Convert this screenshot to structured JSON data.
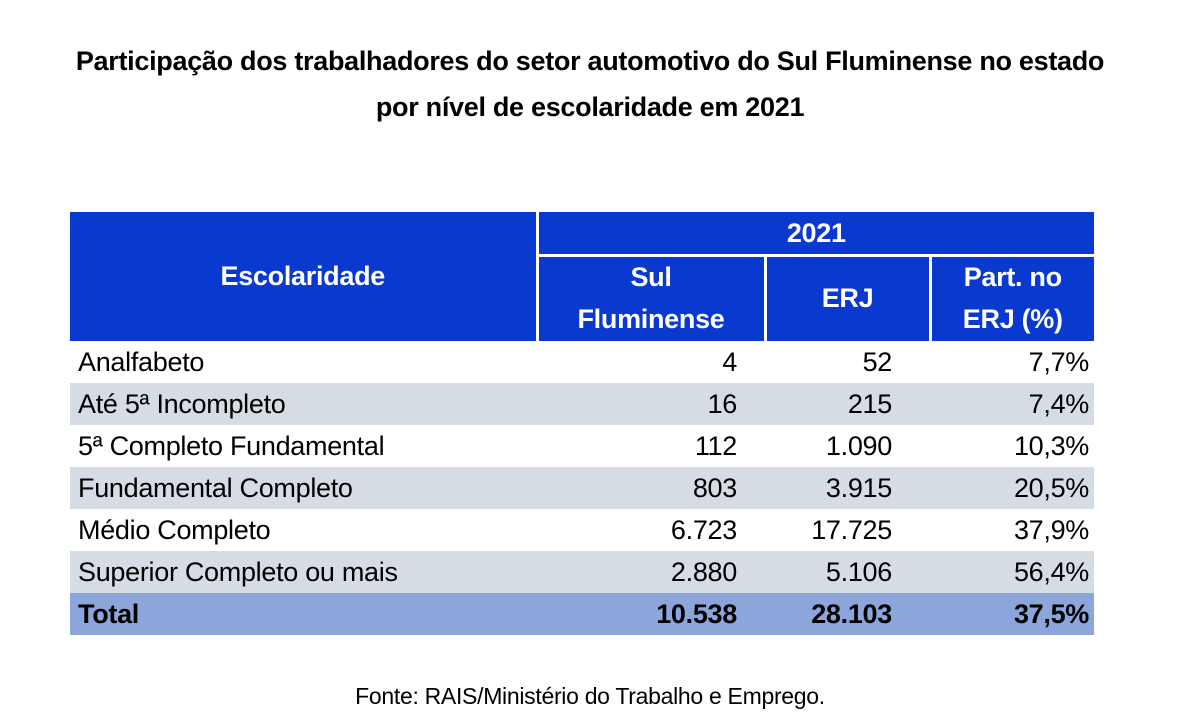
{
  "title": "Participação dos trabalhadores do setor automotivo do Sul Fluminense no estado por nível de escolaridade em 2021",
  "source": "Fonte: RAIS/Ministério do Trabalho e Emprego.",
  "table": {
    "corner_header": "Escolaridade",
    "year_header": "2021",
    "columns": [
      "Sul Fluminense",
      "ERJ",
      "Part. no ERJ (%)"
    ],
    "rows": [
      {
        "label": "Analfabeto",
        "sul_fluminense": "4",
        "erj": "52",
        "part": "7,7%"
      },
      {
        "label": "Até 5ª Incompleto",
        "sul_fluminense": "16",
        "erj": "215",
        "part": "7,4%"
      },
      {
        "label": "5ª Completo Fundamental",
        "sul_fluminense": "112",
        "erj": "1.090",
        "part": "10,3%"
      },
      {
        "label": "Fundamental Completo",
        "sul_fluminense": "803",
        "erj": "3.915",
        "part": "20,5%"
      },
      {
        "label": "Médio Completo",
        "sul_fluminense": "6.723",
        "erj": "17.725",
        "part": "37,9%"
      },
      {
        "label": "Superior Completo ou mais",
        "sul_fluminense": "2.880",
        "erj": "5.106",
        "part": "56,4%"
      },
      {
        "label": "Total",
        "sul_fluminense": "10.538",
        "erj": "28.103",
        "part": "37,5%"
      }
    ]
  },
  "colors": {
    "header_bg": "#0939CF",
    "header_text": "#FFFFFF",
    "stripe_bg": "#D6DCE4",
    "total_row_bg": "#8CA5DB",
    "body_text": "#000000"
  },
  "chart_data": {
    "type": "table",
    "title": "Participação dos trabalhadores do setor automotivo do Sul Fluminense no estado por nível de escolaridade em 2021",
    "year": "2021",
    "columns": [
      "Escolaridade",
      "Sul Fluminense",
      "ERJ",
      "Part. no ERJ (%)"
    ],
    "rows": [
      [
        "Analfabeto",
        4,
        52,
        "7,7%"
      ],
      [
        "Até 5ª Incompleto",
        16,
        215,
        "7,4%"
      ],
      [
        "5ª Completo Fundamental",
        112,
        1090,
        "10,3%"
      ],
      [
        "Fundamental Completo",
        803,
        3915,
        "20,5%"
      ],
      [
        "Médio Completo",
        6723,
        17725,
        "37,9%"
      ],
      [
        "Superior Completo ou mais",
        2880,
        5106,
        "56,4%"
      ],
      [
        "Total",
        10538,
        28103,
        "37,5%"
      ]
    ],
    "source": "Fonte: RAIS/Ministério do Trabalho e Emprego."
  }
}
